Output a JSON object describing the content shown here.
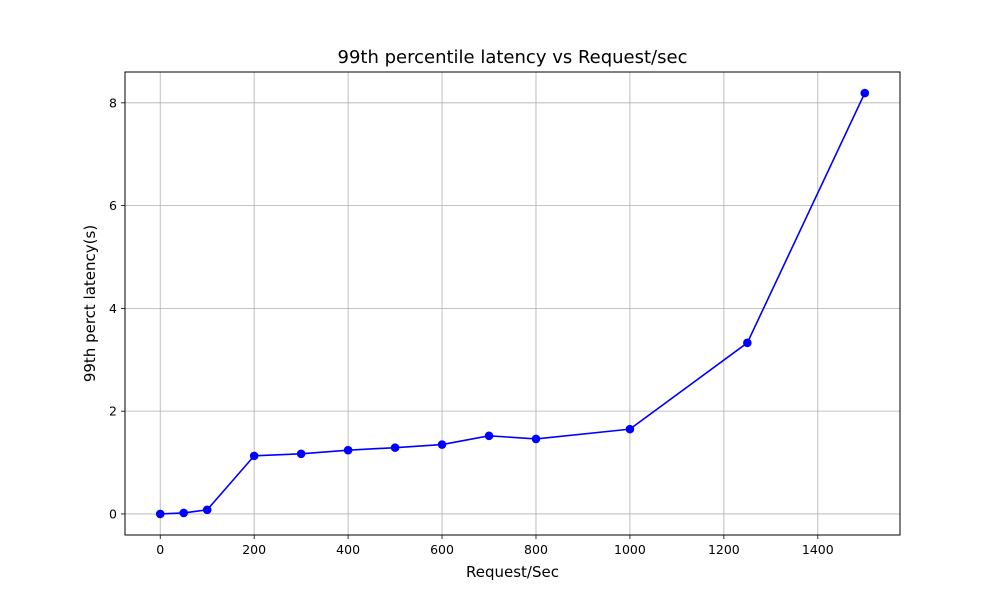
{
  "chart_data": {
    "type": "line",
    "title": "99th percentile latency vs Request/sec",
    "xlabel": "Request/Sec",
    "ylabel": "99th perct latency(s)",
    "xlim": [
      -75,
      1575
    ],
    "ylim": [
      -0.41,
      8.6
    ],
    "x_ticks": [
      0,
      200,
      400,
      600,
      800,
      1000,
      1200,
      1400
    ],
    "y_ticks": [
      0,
      2,
      4,
      6,
      8
    ],
    "grid": true,
    "legend": "none",
    "series": [
      {
        "color": "#0000ff",
        "marker": "circle",
        "x": [
          0,
          50,
          100,
          200,
          300,
          400,
          500,
          600,
          700,
          800,
          1000,
          1250,
          1500
        ],
        "y": [
          0.0,
          0.02,
          0.08,
          1.13,
          1.17,
          1.24,
          1.29,
          1.35,
          1.52,
          1.46,
          1.65,
          3.33,
          8.19
        ]
      }
    ]
  }
}
